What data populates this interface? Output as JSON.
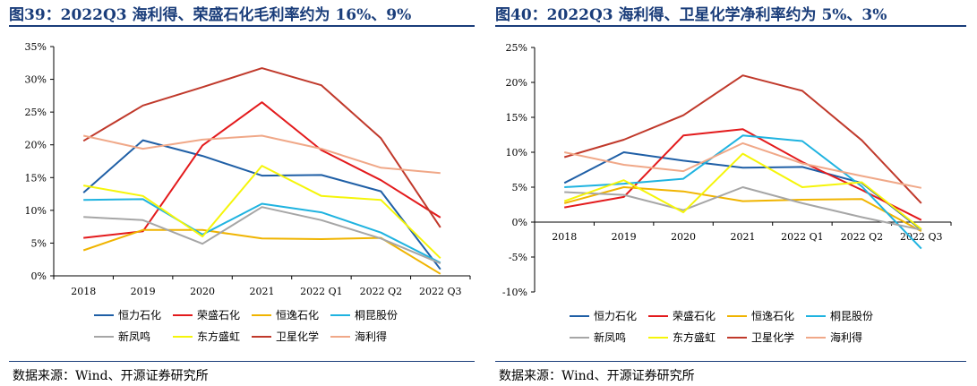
{
  "left": {
    "title": "图39：2022Q3 海利得、荣盛石化毛利率约为 16%、9%",
    "source": "数据来源：Wind、开源证券研究所"
  },
  "right": {
    "title": "图40：2022Q3 海利得、卫星化学净利率约为 5%、3%",
    "source": "数据来源：Wind、开源证券研究所"
  },
  "chart_data": [
    {
      "type": "line",
      "title": "2022Q3 海利得、荣盛石化毛利率约为 16%、9%",
      "categories": [
        "2018",
        "2019",
        "2020",
        "2021",
        "2022 Q1",
        "2022 Q2",
        "2022 Q3"
      ],
      "ylim": [
        0,
        35
      ],
      "yticks": [
        "0%",
        "5%",
        "10%",
        "15%",
        "20%",
        "25%",
        "30%",
        "35%"
      ],
      "ytick_values": [
        0,
        5,
        10,
        15,
        20,
        25,
        30,
        35
      ],
      "legend_position": "bottom",
      "series": [
        {
          "name": "恒力石化",
          "color": "#1f5fa6",
          "values": [
            12.7,
            20.7,
            18.3,
            15.3,
            15.4,
            12.9,
            1.0
          ]
        },
        {
          "name": "荣盛石化",
          "color": "#e31a1c",
          "values": [
            5.8,
            6.8,
            19.9,
            26.5,
            19.2,
            14.6,
            8.9
          ]
        },
        {
          "name": "恒逸石化",
          "color": "#f0b400",
          "values": [
            3.9,
            7.0,
            7.0,
            5.7,
            5.6,
            5.8,
            0.3
          ]
        },
        {
          "name": "桐昆股份",
          "color": "#1fb3e0",
          "values": [
            11.6,
            11.7,
            6.3,
            11.0,
            9.7,
            6.6,
            2.0
          ]
        },
        {
          "name": "新凤鸣",
          "color": "#a6a6a6",
          "values": [
            9.0,
            8.5,
            4.9,
            10.5,
            8.5,
            5.7,
            1.9
          ]
        },
        {
          "name": "东方盛虹",
          "color": "#f5f50a",
          "values": [
            13.8,
            12.2,
            6.0,
            16.8,
            12.2,
            11.6,
            2.7
          ]
        },
        {
          "name": "卫星化学",
          "color": "#c0392b",
          "values": [
            20.6,
            26.0,
            28.8,
            31.7,
            29.1,
            21.0,
            7.4
          ]
        },
        {
          "name": "海利得",
          "color": "#f0a888",
          "values": [
            21.4,
            19.4,
            20.8,
            21.4,
            19.4,
            16.5,
            15.7
          ]
        }
      ]
    },
    {
      "type": "line",
      "title": "2022Q3 海利得、卫星化学净利率约为 5%、3%",
      "categories": [
        "2018",
        "2019",
        "2020",
        "2021",
        "2022 Q1",
        "2022 Q2",
        "2022 Q3"
      ],
      "ylim": [
        -10,
        25
      ],
      "yticks": [
        "-10%",
        "-5%",
        "0%",
        "5%",
        "10%",
        "15%",
        "20%",
        "25%"
      ],
      "ytick_values": [
        -10,
        -5,
        0,
        5,
        10,
        15,
        20,
        25
      ],
      "legend_position": "bottom",
      "series": [
        {
          "name": "恒力石化",
          "color": "#1f5fa6",
          "values": [
            5.6,
            10.0,
            8.8,
            7.8,
            7.9,
            5.6,
            -1.1
          ]
        },
        {
          "name": "荣盛石化",
          "color": "#e31a1c",
          "values": [
            2.1,
            3.6,
            12.4,
            13.3,
            8.6,
            4.6,
            0.3
          ]
        },
        {
          "name": "恒逸石化",
          "color": "#f0b400",
          "values": [
            2.7,
            5.0,
            4.4,
            3.0,
            3.2,
            3.3,
            -1.3
          ]
        },
        {
          "name": "桐昆股份",
          "color": "#1fb3e0",
          "values": [
            5.0,
            5.5,
            6.2,
            12.4,
            11.6,
            5.1,
            -3.8
          ]
        },
        {
          "name": "新凤鸣",
          "color": "#a6a6a6",
          "values": [
            4.3,
            3.9,
            1.7,
            5.0,
            2.7,
            0.7,
            -1.1
          ]
        },
        {
          "name": "东方盛虹",
          "color": "#f5f50a",
          "values": [
            3.0,
            6.0,
            1.4,
            9.8,
            5.0,
            5.7,
            -1.0
          ]
        },
        {
          "name": "卫星化学",
          "color": "#c0392b",
          "values": [
            9.3,
            11.8,
            15.3,
            21.0,
            18.8,
            11.7,
            2.7
          ]
        },
        {
          "name": "海利得",
          "color": "#f0a888",
          "values": [
            10.0,
            8.2,
            7.3,
            11.3,
            8.4,
            6.6,
            4.9
          ]
        }
      ]
    }
  ]
}
